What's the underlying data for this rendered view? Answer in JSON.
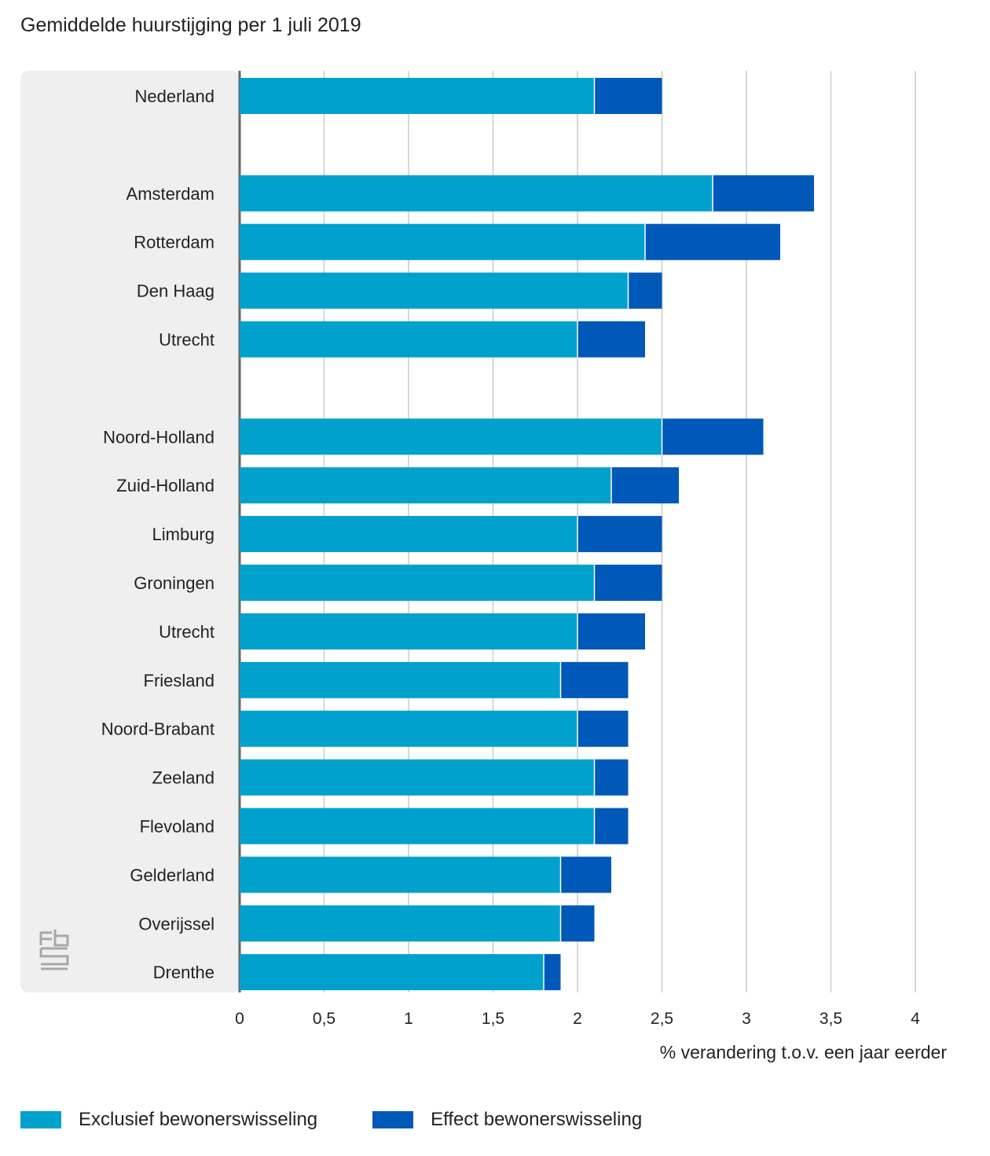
{
  "chart_data": {
    "type": "bar",
    "orientation": "horizontal",
    "stacked": true,
    "title": "Gemiddelde huurstijging per 1 juli 2019",
    "xlabel": "% verandering t.o.v. een jaar eerder",
    "ylabel": "",
    "xlim": [
      0,
      4
    ],
    "xticks": [
      0,
      0.5,
      1,
      1.5,
      2,
      2.5,
      3,
      3.5,
      4
    ],
    "xtick_labels": [
      "0",
      "0,5",
      "1",
      "1,5",
      "2",
      "2,5",
      "3",
      "3,5",
      "4"
    ],
    "grid": true,
    "legend_position": "bottom-left",
    "categories": [
      "Nederland",
      "",
      "Amsterdam",
      "Rotterdam",
      "Den Haag",
      "Utrecht",
      "",
      "Noord-Holland",
      "Zuid-Holland",
      "Limburg",
      "Groningen",
      "Utrecht",
      "Friesland",
      "Noord-Brabant",
      "Zeeland",
      "Flevoland",
      "Gelderland",
      "Overijssel",
      "Drenthe"
    ],
    "series": [
      {
        "name": "Exclusief bewonerswisseling",
        "color": "#00a1cd",
        "values": [
          2.1,
          null,
          2.8,
          2.4,
          2.3,
          2.0,
          null,
          2.5,
          2.2,
          2.0,
          2.1,
          2.0,
          1.9,
          2.0,
          2.1,
          2.1,
          1.9,
          1.9,
          1.8
        ]
      },
      {
        "name": "Effect bewonerswisseling",
        "color": "#0058b8",
        "values": [
          0.4,
          null,
          0.6,
          0.8,
          0.2,
          0.4,
          null,
          0.6,
          0.4,
          0.5,
          0.4,
          0.4,
          0.4,
          0.3,
          0.2,
          0.2,
          0.3,
          0.2,
          0.1
        ]
      }
    ]
  },
  "logo": {
    "name": "cbs-logo",
    "color": "#a8a8a8"
  },
  "colors": {
    "panel": "#efefef",
    "grid": "#cccccc",
    "axis": "#666666"
  }
}
